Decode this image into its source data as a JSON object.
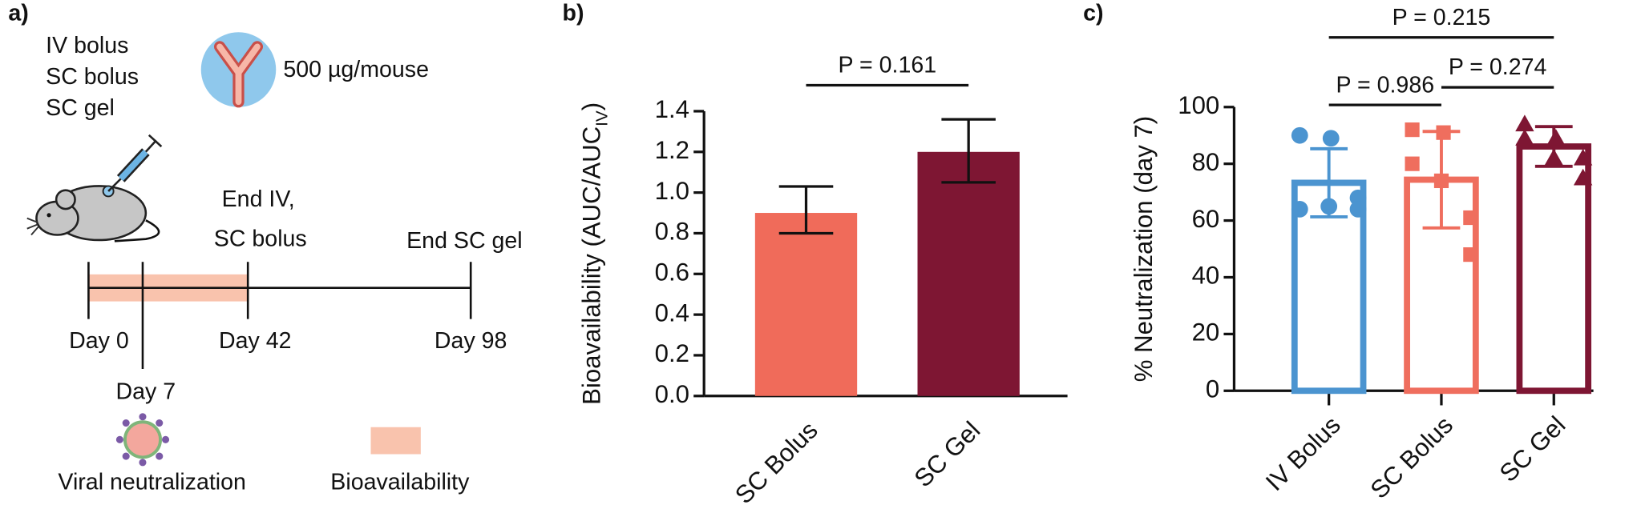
{
  "diagram": {
    "panel_label": "a)",
    "groups": [
      "IV bolus",
      "SC bolus",
      "SC gel"
    ],
    "dose": "500 µg/mouse",
    "events": [
      "End IV,",
      "SC bolus",
      "End SC gel"
    ],
    "days": [
      "Day 0",
      "Day 7",
      "Day 42",
      "Day 98"
    ],
    "legend": [
      "Viral neutralization",
      "Bioavailability"
    ]
  },
  "chart_data": [
    {
      "type": "bar",
      "panel_label": "b)",
      "y_label": "Bioavailability (AUC/AUC",
      "y_label_subscript": "IV",
      "y_label_suffix": ")",
      "categories": [
        "SC Bolus",
        "SC Gel"
      ],
      "values": [
        0.9,
        1.2
      ],
      "errors": [
        [
          0.1,
          0.13
        ],
        [
          0.15,
          0.16
        ]
      ],
      "colors": [
        "#f06b5a",
        "#7e1633"
      ],
      "ylim": [
        0,
        1.4
      ],
      "yticks": [
        {
          "value": 0,
          "label": "0.0"
        },
        0.2,
        0.4,
        0.6,
        0.8,
        {
          "value": 1,
          "label": "1.0"
        },
        1.2,
        1.4
      ],
      "annotations": [
        {
          "text": "P = 0.161",
          "from": 0,
          "to": 1
        }
      ]
    },
    {
      "type": "bar",
      "panel_label": "c)",
      "y_label": "% Neutralization (day 7)",
      "categories": [
        "IV Bolus",
        "SC Bolus",
        "SC Gel"
      ],
      "values": [
        73.3,
        74.4,
        86.1
      ],
      "errors": [
        12,
        17,
        7
      ],
      "points": [
        [
          90,
          89,
          64,
          65,
          68,
          64
        ],
        [
          92,
          91,
          80,
          74,
          61,
          48
        ],
        [
          94,
          89,
          89,
          82,
          82,
          75
        ]
      ],
      "markers": [
        "circle",
        "square",
        "triangle"
      ],
      "colors": [
        "#4b94d0",
        "#ef6e5e",
        "#7e1633"
      ],
      "hollow": true,
      "ylim": [
        0,
        100
      ],
      "yticks": [
        0,
        20,
        40,
        60,
        80,
        100
      ],
      "annotations": [
        {
          "text": "P = 0.215",
          "from": 0,
          "to": 2
        },
        {
          "text": "P = 0.986",
          "from": 0,
          "to": 1
        },
        {
          "text": "P = 0.274",
          "from": 1,
          "to": 2
        }
      ]
    }
  ]
}
